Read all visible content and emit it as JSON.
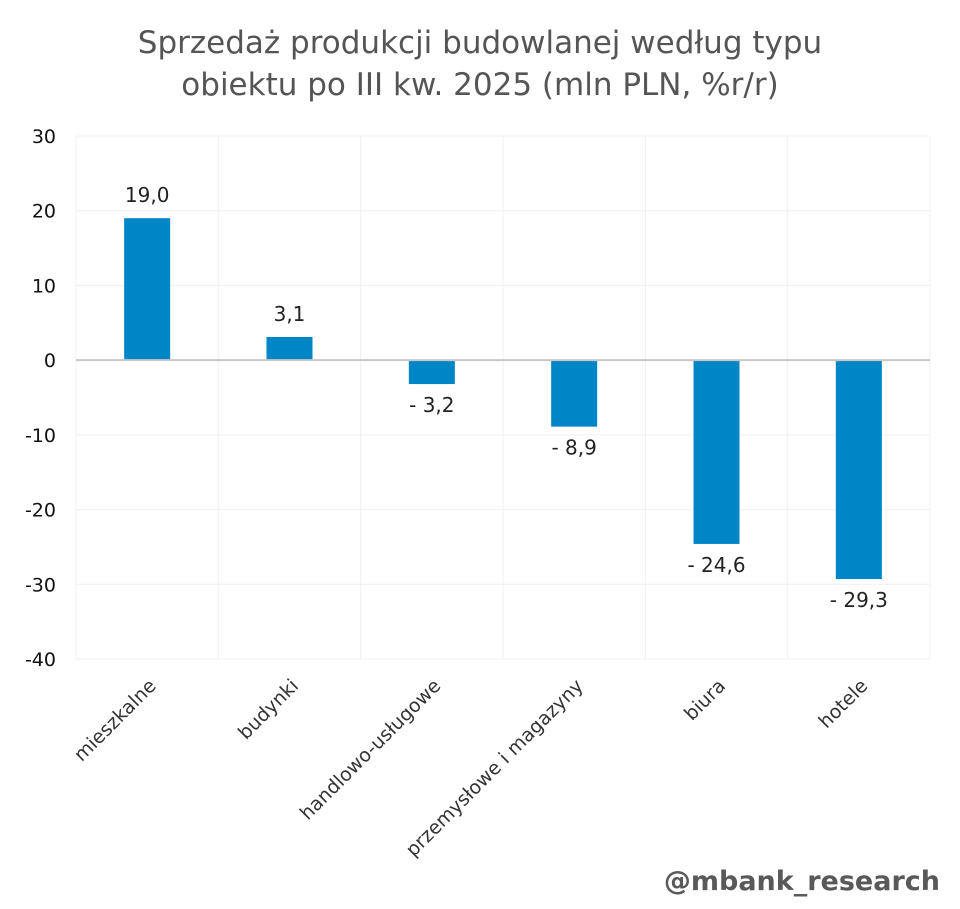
{
  "chart_data": {
    "type": "bar",
    "title": "Sprzedaż produkcji budowlanej według typu obiektu po III kw. 2025 (mln PLN, %r/r)",
    "title_lines": [
      "Sprzedaż produkcji budowlanej według typu",
      "obiektu po III kw. 2025 (mln PLN, %r/r)"
    ],
    "categories": [
      "mieszkalne",
      "budynki",
      "handlowo-usługowe",
      "przemysłowe i magazyny",
      "biura",
      "hotele"
    ],
    "values": [
      19.0,
      3.1,
      -3.2,
      -8.9,
      -24.6,
      -29.3
    ],
    "data_labels": [
      "19,0",
      "3,1",
      "- 3,2",
      "- 8,9",
      "- 24,6",
      "- 29,3"
    ],
    "ylim": [
      -40,
      30
    ],
    "yticks": [
      30,
      20,
      10,
      0,
      -10,
      -20,
      -30,
      -40
    ],
    "xlabel": "",
    "ylabel": "",
    "grid": true,
    "bar_color": "#0085C7"
  },
  "watermark": "@mbank_research"
}
